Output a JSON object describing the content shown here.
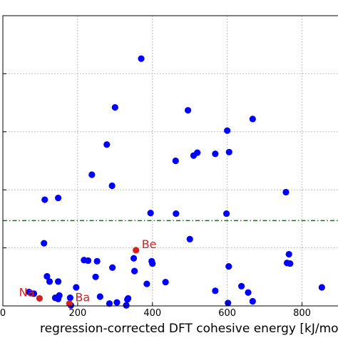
{
  "chart_data": {
    "type": "scatter",
    "xlabel": "regression-corrected DFT cohesive energy [kJ/mol]",
    "xticks": [
      0,
      200,
      400,
      600,
      800
    ],
    "xlim": [
      0,
      900
    ],
    "ylim": [
      0,
      500
    ],
    "grid": true,
    "colors": {
      "points": "#0000ff",
      "highlight": "#d62020",
      "threshold": "#008000"
    },
    "threshold_y": 147,
    "series": [
      {
        "points": [
          [
            370,
            426
          ],
          [
            300,
            342
          ],
          [
            495,
            337
          ],
          [
            668,
            322
          ],
          [
            600,
            302
          ],
          [
            278,
            278
          ],
          [
            520,
            264
          ],
          [
            605,
            265
          ],
          [
            568,
            262
          ],
          [
            510,
            259
          ],
          [
            462,
            250
          ],
          [
            238,
            226
          ],
          [
            292,
            207
          ],
          [
            757,
            196
          ],
          [
            148,
            186
          ],
          [
            463,
            159
          ],
          [
            395,
            160
          ],
          [
            112,
            183
          ],
          [
            598,
            159
          ],
          [
            110,
            108
          ],
          [
            500,
            115
          ],
          [
            400,
            73
          ],
          [
            398,
            77
          ],
          [
            350,
            82
          ],
          [
            217,
            79
          ],
          [
            228,
            78
          ],
          [
            252,
            77
          ],
          [
            293,
            66
          ],
          [
            118,
            51
          ],
          [
            352,
            60
          ],
          [
            760,
            74
          ],
          [
            768,
            73
          ],
          [
            765,
            89
          ],
          [
            604,
            68
          ],
          [
            435,
            41
          ],
          [
            248,
            50
          ],
          [
            125,
            42
          ],
          [
            148,
            42
          ],
          [
            196,
            32
          ],
          [
            385,
            38
          ],
          [
            70,
            24
          ],
          [
            75,
            22
          ],
          [
            83,
            21
          ],
          [
            151,
            18
          ],
          [
            568,
            26
          ],
          [
            638,
            34
          ],
          [
            853,
            32
          ],
          [
            180,
            14
          ],
          [
            148,
            12
          ],
          [
            140,
            14
          ],
          [
            260,
            16
          ],
          [
            656,
            23
          ],
          [
            333,
            11
          ],
          [
            335,
            13
          ],
          [
            182,
            1
          ],
          [
            285,
            4
          ],
          [
            305,
            6
          ],
          [
            602,
            5
          ],
          [
            668,
            8
          ],
          [
            330,
            1
          ]
        ]
      },
      {
        "points": [
          [
            98,
            13,
            "Na"
          ],
          [
            178,
            4,
            "Ba"
          ],
          [
            356,
            96,
            "Be"
          ]
        ]
      }
    ]
  }
}
